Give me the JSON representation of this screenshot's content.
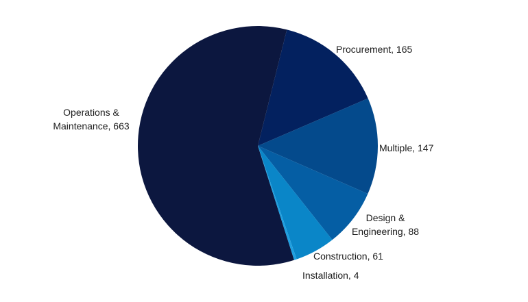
{
  "chart_data": {
    "type": "pie",
    "categories": [
      "Procurement",
      "Multiple",
      "Design & Engineering",
      "Construction",
      "Installation",
      "Operations & Maintenance"
    ],
    "values": [
      165,
      147,
      88,
      61,
      4,
      663
    ],
    "value_labels": [
      "Procurement, 165",
      "Multiple, 147",
      "Design & Engineering, 88",
      "Construction, 61",
      "Installation, 4",
      "Operations & Maintenance, 663"
    ],
    "colors": [
      "#03215f",
      "#044a8c",
      "#055ea4",
      "#0a86c8",
      "#1f9fe0",
      "#0c173f"
    ]
  }
}
